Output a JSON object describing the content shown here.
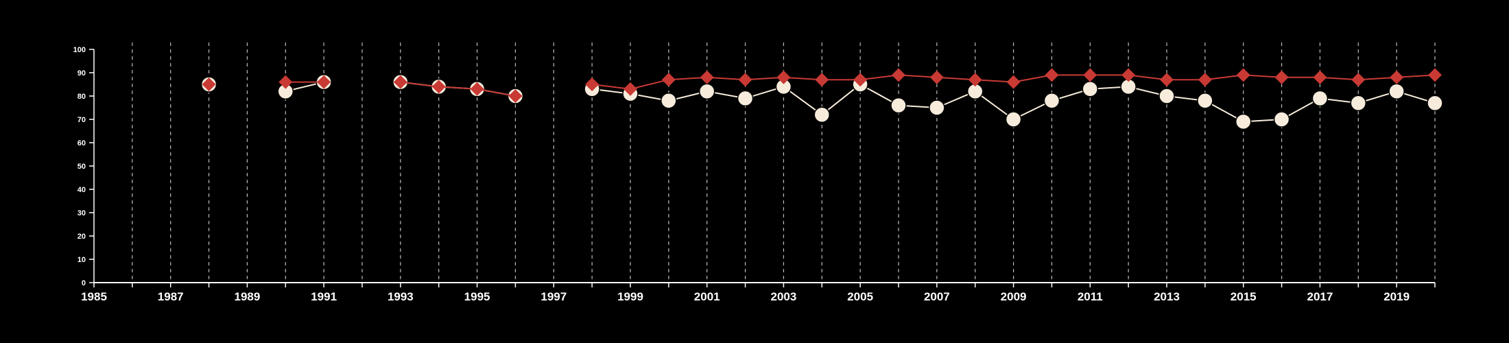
{
  "chart_data": {
    "type": "line",
    "title": "",
    "xlabel": "",
    "ylabel": "",
    "xlim": [
      1985,
      2020
    ],
    "ylim": [
      0,
      100
    ],
    "x_ticks": [
      "1985",
      "1987",
      "1989",
      "1991",
      "1993",
      "1995",
      "1997",
      "1999",
      "2001",
      "2003",
      "2005",
      "2007",
      "2009",
      "2011",
      "2013",
      "2015",
      "2017",
      "2019"
    ],
    "y_ticks": [
      "0",
      "10",
      "20",
      "30",
      "40",
      "50",
      "60",
      "70",
      "80",
      "90",
      "100"
    ],
    "grid": "vertical dashed gridlines at every year",
    "colors": {
      "background": "#000000",
      "axis": "#ffffff",
      "grid": "#bbbbbb",
      "series_white": "#f7ecdc",
      "series_red": "#c93a35"
    },
    "series": [
      {
        "marker": "circle",
        "color": "#f7ecdc",
        "points": [
          {
            "x": 1988,
            "y": 85
          },
          {
            "x": 1990,
            "y": 82
          },
          {
            "x": 1991,
            "y": 86
          },
          {
            "x": 1993,
            "y": 86
          },
          {
            "x": 1994,
            "y": 84
          },
          {
            "x": 1995,
            "y": 83
          },
          {
            "x": 1996,
            "y": 80
          },
          {
            "x": 1998,
            "y": 83
          },
          {
            "x": 1999,
            "y": 81
          },
          {
            "x": 2000,
            "y": 78
          },
          {
            "x": 2001,
            "y": 82
          },
          {
            "x": 2002,
            "y": 79
          },
          {
            "x": 2003,
            "y": 84
          },
          {
            "x": 2004,
            "y": 72
          },
          {
            "x": 2005,
            "y": 85
          },
          {
            "x": 2006,
            "y": 76
          },
          {
            "x": 2007,
            "y": 75
          },
          {
            "x": 2008,
            "y": 82
          },
          {
            "x": 2009,
            "y": 70
          },
          {
            "x": 2010,
            "y": 78
          },
          {
            "x": 2011,
            "y": 83
          },
          {
            "x": 2012,
            "y": 84
          },
          {
            "x": 2013,
            "y": 80
          },
          {
            "x": 2014,
            "y": 78
          },
          {
            "x": 2015,
            "y": 69
          },
          {
            "x": 2016,
            "y": 70
          },
          {
            "x": 2017,
            "y": 79
          },
          {
            "x": 2018,
            "y": 77
          },
          {
            "x": 2019,
            "y": 82
          },
          {
            "x": 2020,
            "y": 77
          }
        ]
      },
      {
        "marker": "diamond",
        "color": "#c93a35",
        "points": [
          {
            "x": 1988,
            "y": 85
          },
          {
            "x": 1990,
            "y": 86
          },
          {
            "x": 1991,
            "y": 86
          },
          {
            "x": 1993,
            "y": 86
          },
          {
            "x": 1994,
            "y": 84
          },
          {
            "x": 1995,
            "y": 83
          },
          {
            "x": 1996,
            "y": 80
          },
          {
            "x": 1998,
            "y": 85
          },
          {
            "x": 1999,
            "y": 83
          },
          {
            "x": 2000,
            "y": 87
          },
          {
            "x": 2001,
            "y": 88
          },
          {
            "x": 2002,
            "y": 87
          },
          {
            "x": 2003,
            "y": 88
          },
          {
            "x": 2004,
            "y": 87
          },
          {
            "x": 2005,
            "y": 87
          },
          {
            "x": 2006,
            "y": 89
          },
          {
            "x": 2007,
            "y": 88
          },
          {
            "x": 2008,
            "y": 87
          },
          {
            "x": 2009,
            "y": 86
          },
          {
            "x": 2010,
            "y": 89
          },
          {
            "x": 2011,
            "y": 89
          },
          {
            "x": 2012,
            "y": 89
          },
          {
            "x": 2013,
            "y": 87
          },
          {
            "x": 2014,
            "y": 87
          },
          {
            "x": 2015,
            "y": 89
          },
          {
            "x": 2016,
            "y": 88
          },
          {
            "x": 2017,
            "y": 88
          },
          {
            "x": 2018,
            "y": 87
          },
          {
            "x": 2019,
            "y": 88
          },
          {
            "x": 2020,
            "y": 89
          }
        ]
      }
    ]
  }
}
